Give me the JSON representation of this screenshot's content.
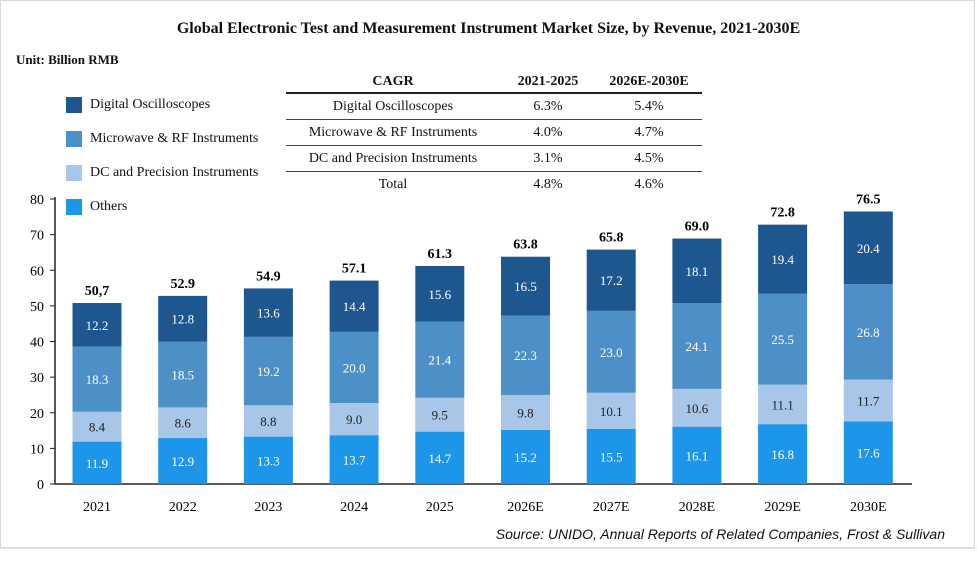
{
  "chart_data": {
    "type": "bar",
    "stacked": true,
    "title": "Global Electronic Test and Measurement Instrument Market Size, by Revenue, 2021-2030E",
    "unit_label": "Unit: Billion RMB",
    "categories": [
      "2021",
      "2022",
      "2023",
      "2024",
      "2025",
      "2026E",
      "2027E",
      "2028E",
      "2029E",
      "2030E"
    ],
    "series": [
      {
        "name": "Others",
        "color": "#1d95e8",
        "label_color": "#ffffff",
        "values": [
          11.9,
          12.9,
          13.3,
          13.7,
          14.7,
          15.2,
          15.5,
          16.1,
          16.8,
          17.6
        ]
      },
      {
        "name": "DC and  Precision Instruments",
        "color": "#a7c6e8",
        "label_color": "#222222",
        "values": [
          8.4,
          8.6,
          8.8,
          9.0,
          9.5,
          9.8,
          10.1,
          10.6,
          11.1,
          11.7
        ]
      },
      {
        "name": "Microwave & RF Instruments",
        "color": "#4d8fc7",
        "label_color": "#ffffff",
        "values": [
          18.3,
          18.5,
          19.2,
          20.0,
          21.4,
          22.3,
          23.0,
          24.1,
          25.5,
          26.8
        ]
      },
      {
        "name": "Digital Oscilloscopes",
        "color": "#1e5790",
        "label_color": "#ffffff",
        "values": [
          12.2,
          12.8,
          13.6,
          14.4,
          15.6,
          16.5,
          17.2,
          18.1,
          19.4,
          20.4
        ]
      }
    ],
    "totals": [
      "50,7",
      "52.9",
      "54.9",
      "57.1",
      "61.3",
      "63.8",
      "65.8",
      "69.0",
      "72.8",
      "76.5"
    ],
    "segment_labels": [
      [
        "11.9",
        "12.9",
        "13.3",
        "13.7",
        "14.7",
        "15.2",
        "15.5",
        "16.1",
        "16.8",
        "17.6"
      ],
      [
        "8.4",
        "8.6",
        "8.8",
        "9.0",
        "9.5",
        "9.8",
        "10.1",
        "10.6",
        "11.1",
        "11.7"
      ],
      [
        "18.3",
        "18.5",
        "19.2",
        "20.0",
        "21.4",
        "22.3",
        "23.0",
        "24.1",
        "25.5",
        "26.8"
      ],
      [
        "12.2",
        "12.8",
        "13.6",
        "14.4",
        "15.6",
        "16.5",
        "17.2",
        "18.1",
        "19.4",
        "20.4"
      ]
    ],
    "ylim": [
      0,
      80
    ],
    "yticks": [
      "0",
      "10",
      "20",
      "30",
      "40",
      "50",
      "60",
      "70",
      "80"
    ],
    "legend_order": [
      "Digital Oscilloscopes",
      "Microwave & RF Instruments",
      "DC and  Precision Instruments",
      "Others"
    ],
    "legend_position": "top-left",
    "grid": false
  },
  "cagr_table": {
    "headers": [
      "CAGR",
      "2021-2025",
      "2026E-2030E"
    ],
    "rows": [
      [
        "Digital Oscilloscopes",
        "6.3%",
        "5.4%"
      ],
      [
        "Microwave & RF Instruments",
        "4.0%",
        "4.7%"
      ],
      [
        "DC  and Precision Instruments",
        "3.1%",
        "4.5%"
      ],
      [
        "Total",
        "4.8%",
        "4.6%"
      ]
    ]
  },
  "source": "Source: UNIDO, Annual Reports of Related Companies, Frost & Sullivan"
}
